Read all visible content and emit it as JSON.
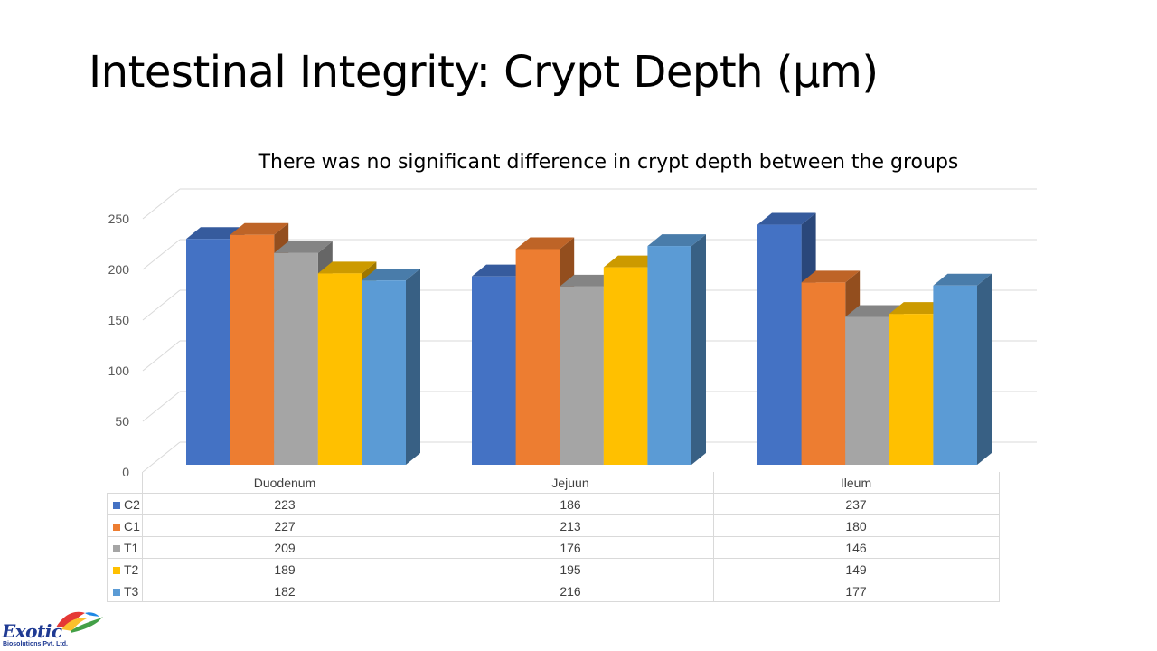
{
  "slide": {
    "title": "Intestinal Integrity: Crypt Depth (µm)"
  },
  "logo": {
    "name": "Exotic",
    "subtitle": "Biosolutions Pvt. Ltd."
  },
  "chart_data": {
    "type": "bar",
    "style": "3d-clustered-column",
    "title": "There was no significant difference in crypt depth between the groups",
    "xlabel": "",
    "ylabel": "",
    "categories": [
      "Duodenum",
      "Jejuun",
      "Ileum"
    ],
    "ylim": [
      0,
      250
    ],
    "yticks": [
      "0",
      "50",
      "100",
      "150",
      "200",
      "250"
    ],
    "grid": true,
    "legend": "data-table",
    "series": [
      {
        "name": "C2",
        "color": "#4472c4",
        "values": [
          223,
          186,
          237
        ]
      },
      {
        "name": "C1",
        "color": "#ed7d31",
        "values": [
          227,
          213,
          180
        ]
      },
      {
        "name": "T1",
        "color": "#a5a5a5",
        "values": [
          209,
          176,
          146
        ]
      },
      {
        "name": "T2",
        "color": "#ffc000",
        "values": [
          189,
          195,
          149
        ]
      },
      {
        "name": "T3",
        "color": "#5b9bd5",
        "values": [
          182,
          216,
          177
        ]
      }
    ]
  }
}
